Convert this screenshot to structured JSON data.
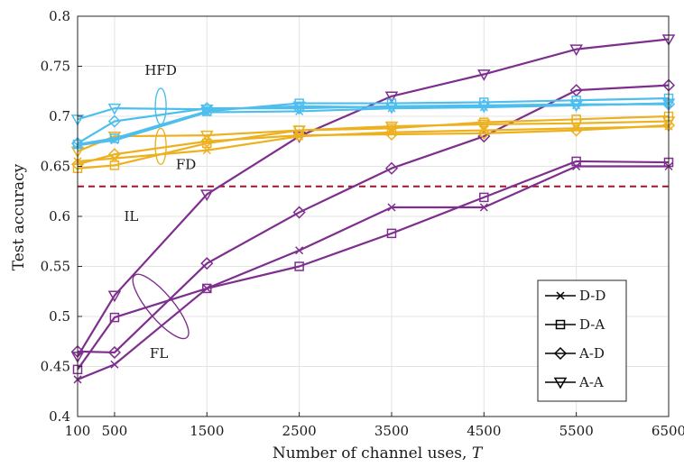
{
  "chart_data": {
    "type": "line",
    "xlabel": "Number of channel uses, ",
    "xlabel_var": "T",
    "ylabel": "Test accuracy",
    "xlim": [
      100,
      6500
    ],
    "ylim": [
      0.4,
      0.8
    ],
    "x": [
      100,
      500,
      1500,
      2500,
      3500,
      4500,
      5500,
      6500
    ],
    "x_tick_labels": [
      "100",
      "500",
      "1500",
      "2500",
      "3500",
      "4500",
      "5500",
      "6500"
    ],
    "y_ticks": [
      0.4,
      0.45,
      0.5,
      0.55,
      0.6,
      0.65,
      0.7,
      0.75,
      0.8
    ],
    "y_tick_labels": [
      "0.4",
      "0.45",
      "0.5",
      "0.55",
      "0.6",
      "0.65",
      "0.7",
      "0.75",
      "0.8"
    ],
    "grid": true,
    "legend_position": "bottom-right",
    "legend": [
      {
        "label": "D-D",
        "marker": "x"
      },
      {
        "label": "D-A",
        "marker": "square"
      },
      {
        "label": "A-D",
        "marker": "diamond"
      },
      {
        "label": "A-A",
        "marker": "triangle-down"
      }
    ],
    "groups": [
      {
        "name": "HFD",
        "color": "#4dbeee"
      },
      {
        "name": "FD",
        "color": "#edb120"
      },
      {
        "name": "FL",
        "color": "#7e2f8e"
      }
    ],
    "series": [
      {
        "group": "HFD",
        "marker": "x",
        "values": [
          0.671,
          0.676,
          0.704,
          0.705,
          0.708,
          0.709,
          0.711,
          0.713
        ]
      },
      {
        "group": "HFD",
        "marker": "square",
        "values": [
          0.672,
          0.678,
          0.705,
          0.713,
          0.713,
          0.714,
          0.716,
          0.718
        ]
      },
      {
        "group": "HFD",
        "marker": "diamond",
        "values": [
          0.673,
          0.695,
          0.708,
          0.708,
          0.71,
          0.711,
          0.712,
          0.712
        ]
      },
      {
        "group": "HFD",
        "marker": "triangle-down",
        "values": [
          0.697,
          0.708,
          0.707,
          0.71,
          0.709,
          0.71,
          0.711,
          0.713
        ]
      },
      {
        "group": "FD",
        "marker": "x",
        "values": [
          0.655,
          0.658,
          0.666,
          0.68,
          0.684,
          0.686,
          0.688,
          0.69
        ]
      },
      {
        "group": "FD",
        "marker": "square",
        "values": [
          0.648,
          0.651,
          0.673,
          0.686,
          0.688,
          0.694,
          0.697,
          0.7
        ]
      },
      {
        "group": "FD",
        "marker": "diamond",
        "values": [
          0.652,
          0.662,
          0.675,
          0.681,
          0.682,
          0.683,
          0.686,
          0.691
        ]
      },
      {
        "group": "FD",
        "marker": "triangle-down",
        "values": [
          0.665,
          0.68,
          0.681,
          0.686,
          0.69,
          0.692,
          0.693,
          0.695
        ]
      },
      {
        "group": "FL",
        "marker": "x",
        "values": [
          0.437,
          0.452,
          0.528,
          0.566,
          0.609,
          0.609,
          0.65,
          0.65
        ]
      },
      {
        "group": "FL",
        "marker": "square",
        "values": [
          0.447,
          0.499,
          0.528,
          0.55,
          0.583,
          0.619,
          0.655,
          0.654
        ]
      },
      {
        "group": "FL",
        "marker": "diamond",
        "values": [
          0.465,
          0.464,
          0.553,
          0.604,
          0.648,
          0.68,
          0.726,
          0.731
        ]
      },
      {
        "group": "FL",
        "marker": "triangle-down",
        "values": [
          0.46,
          0.521,
          0.622,
          0.68,
          0.72,
          0.742,
          0.767,
          0.777
        ]
      }
    ],
    "baseline": {
      "label": "IL",
      "y": 0.63,
      "color": "#a2142f"
    },
    "annotations": [
      {
        "text": "HFD",
        "group": "HFD",
        "anchor_x": 1000,
        "anchor_y": 0.71
      },
      {
        "text": "FD",
        "group": "FD",
        "anchor_x": 1000,
        "anchor_y": 0.67
      },
      {
        "text": "FL",
        "group": "FL",
        "anchor_x": 1000,
        "anchor_y": 0.51
      },
      {
        "text": "IL",
        "group": "baseline",
        "anchor_x": 700,
        "anchor_y": 0.62
      }
    ]
  }
}
